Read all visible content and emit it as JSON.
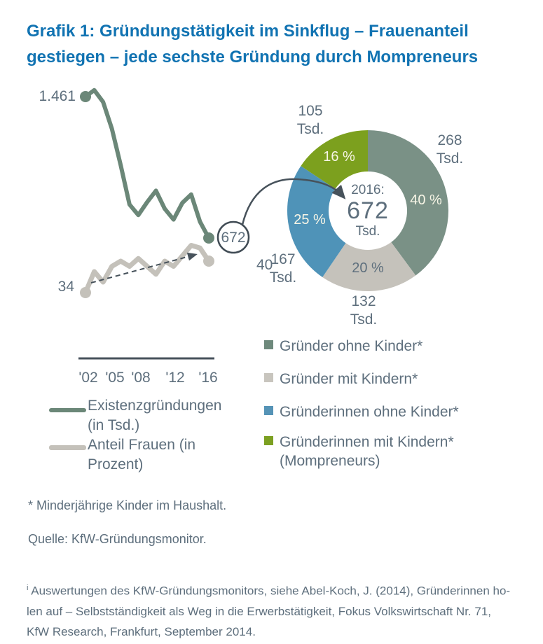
{
  "title": {
    "line1": "Grafik 1: Gründungstätigkeit im Sinkflug – Frauenanteil",
    "line2": "gestiegen – jede sechste Gründung durch Mompreneurs"
  },
  "colors": {
    "title_blue": "#1173B2",
    "label_gray_blue": "#5E6F7D",
    "line_green": "#6B8778",
    "line_gray": "#C4C1BA",
    "axis_dark": "#47525B",
    "donut_sage": "#7A9186",
    "donut_gray": "#C5C2BB",
    "donut_blue": "#4F93B8",
    "donut_olive": "#7CA01E",
    "pct_light": "#F7F5E6"
  },
  "chart_data": [
    {
      "type": "line",
      "x": [
        2002,
        2003,
        2004,
        2005,
        2006,
        2007,
        2008,
        2009,
        2010,
        2011,
        2012,
        2013,
        2014,
        2015,
        2016
      ],
      "x_tick_labels": [
        "'02",
        "'05",
        "'08",
        "'12",
        "'16"
      ],
      "series": [
        {
          "name": "Existenzgründungen (in Tsd.)",
          "color": "#6B8778",
          "values": [
            1461,
            1497,
            1431,
            1281,
            1078,
            859,
            800,
            872,
            936,
            835,
            775,
            868,
            915,
            763,
            672
          ],
          "start_label": "1.461",
          "end_label": "672"
        },
        {
          "name": "Anteil Frauen (in Prozent)",
          "color": "#C4C1BA",
          "values": [
            34,
            38,
            36,
            39,
            40,
            39,
            40.5,
            39,
            37.5,
            40,
            39,
            41,
            43,
            42.5,
            40
          ],
          "start_label": "34",
          "end_label": "40"
        }
      ],
      "annotations": {
        "circled_end_value": "672",
        "trend_arrow_dashed": true
      },
      "legend_position": "below",
      "grid": false
    },
    {
      "type": "pie",
      "title": "",
      "center_label": {
        "year": "2016:",
        "value": "672",
        "unit": "Tsd."
      },
      "segments": [
        {
          "label": "Gründer ohne Kinder*",
          "value_tsd": 268,
          "pct": 40,
          "pct_label": "40 %",
          "out_value": "268",
          "out_unit": "Tsd.",
          "color": "#7A9186",
          "pct_color": "#F7F5E6"
        },
        {
          "label": "Gründer mit Kindern*",
          "value_tsd": 132,
          "pct": 20,
          "pct_label": "20 %",
          "out_value": "132",
          "out_unit": "Tsd.",
          "color": "#C5C2BB",
          "pct_color": "#5E6F7D"
        },
        {
          "label": "Gründerinnen ohne Kinder*",
          "value_tsd": 167,
          "pct": 25,
          "pct_label": "25 %",
          "out_value": "167",
          "out_unit": "Tsd.",
          "color": "#4F93B8",
          "pct_color": "#F7F5E6"
        },
        {
          "label": "Gründerinnen mit Kindern* (Mompreneurs)",
          "value_tsd": 105,
          "pct": 16,
          "pct_label": "16 %",
          "out_value": "105",
          "out_unit": "Tsd.",
          "color": "#7CA01E",
          "pct_color": "#F7F5E6"
        }
      ],
      "legend_position": "right"
    }
  ],
  "line_chart_labels": {
    "start_green": "1.461",
    "end_green_circled": "672",
    "start_gray": "34",
    "end_gray": "40",
    "ticks": [
      "'02",
      "'05",
      "'08",
      "'12",
      "'16"
    ]
  },
  "line_legend": [
    {
      "label": "Existenzgründungen (in Tsd.)",
      "color": "#6B8778"
    },
    {
      "label": "Anteil Frauen (in Prozent)",
      "color": "#C4C1BA"
    }
  ],
  "pie_legend": [
    {
      "label": "Gründer ohne Kinder*",
      "color": "#6E897C"
    },
    {
      "label": "Gründer mit Kindern*",
      "color": "#C8C5BE"
    },
    {
      "label": "Gründerinnen ohne Kinder*",
      "color": "#5593B6"
    },
    {
      "label": "Gründerinnen mit Kindern* (Mompreneurs)",
      "color": "#7CA022"
    }
  ],
  "footnotes": {
    "asterisk": "* Minderjährige Kinder im Haushalt.",
    "source": "Quelle: KfW-Gründungsmonitor.",
    "endnote_marker": "i",
    "endnote_line1": "Auswertungen des KfW-Gründungsmonitors, siehe Abel-Koch, J. (2014), Gründerinnen ho-",
    "endnote_line2": "len auf – Selbstständigkeit als Weg in die Erwerbstätigkeit, Fokus Volkswirtschaft Nr. 71,",
    "endnote_line3": "KfW Research, Frankfurt, September 2014."
  }
}
